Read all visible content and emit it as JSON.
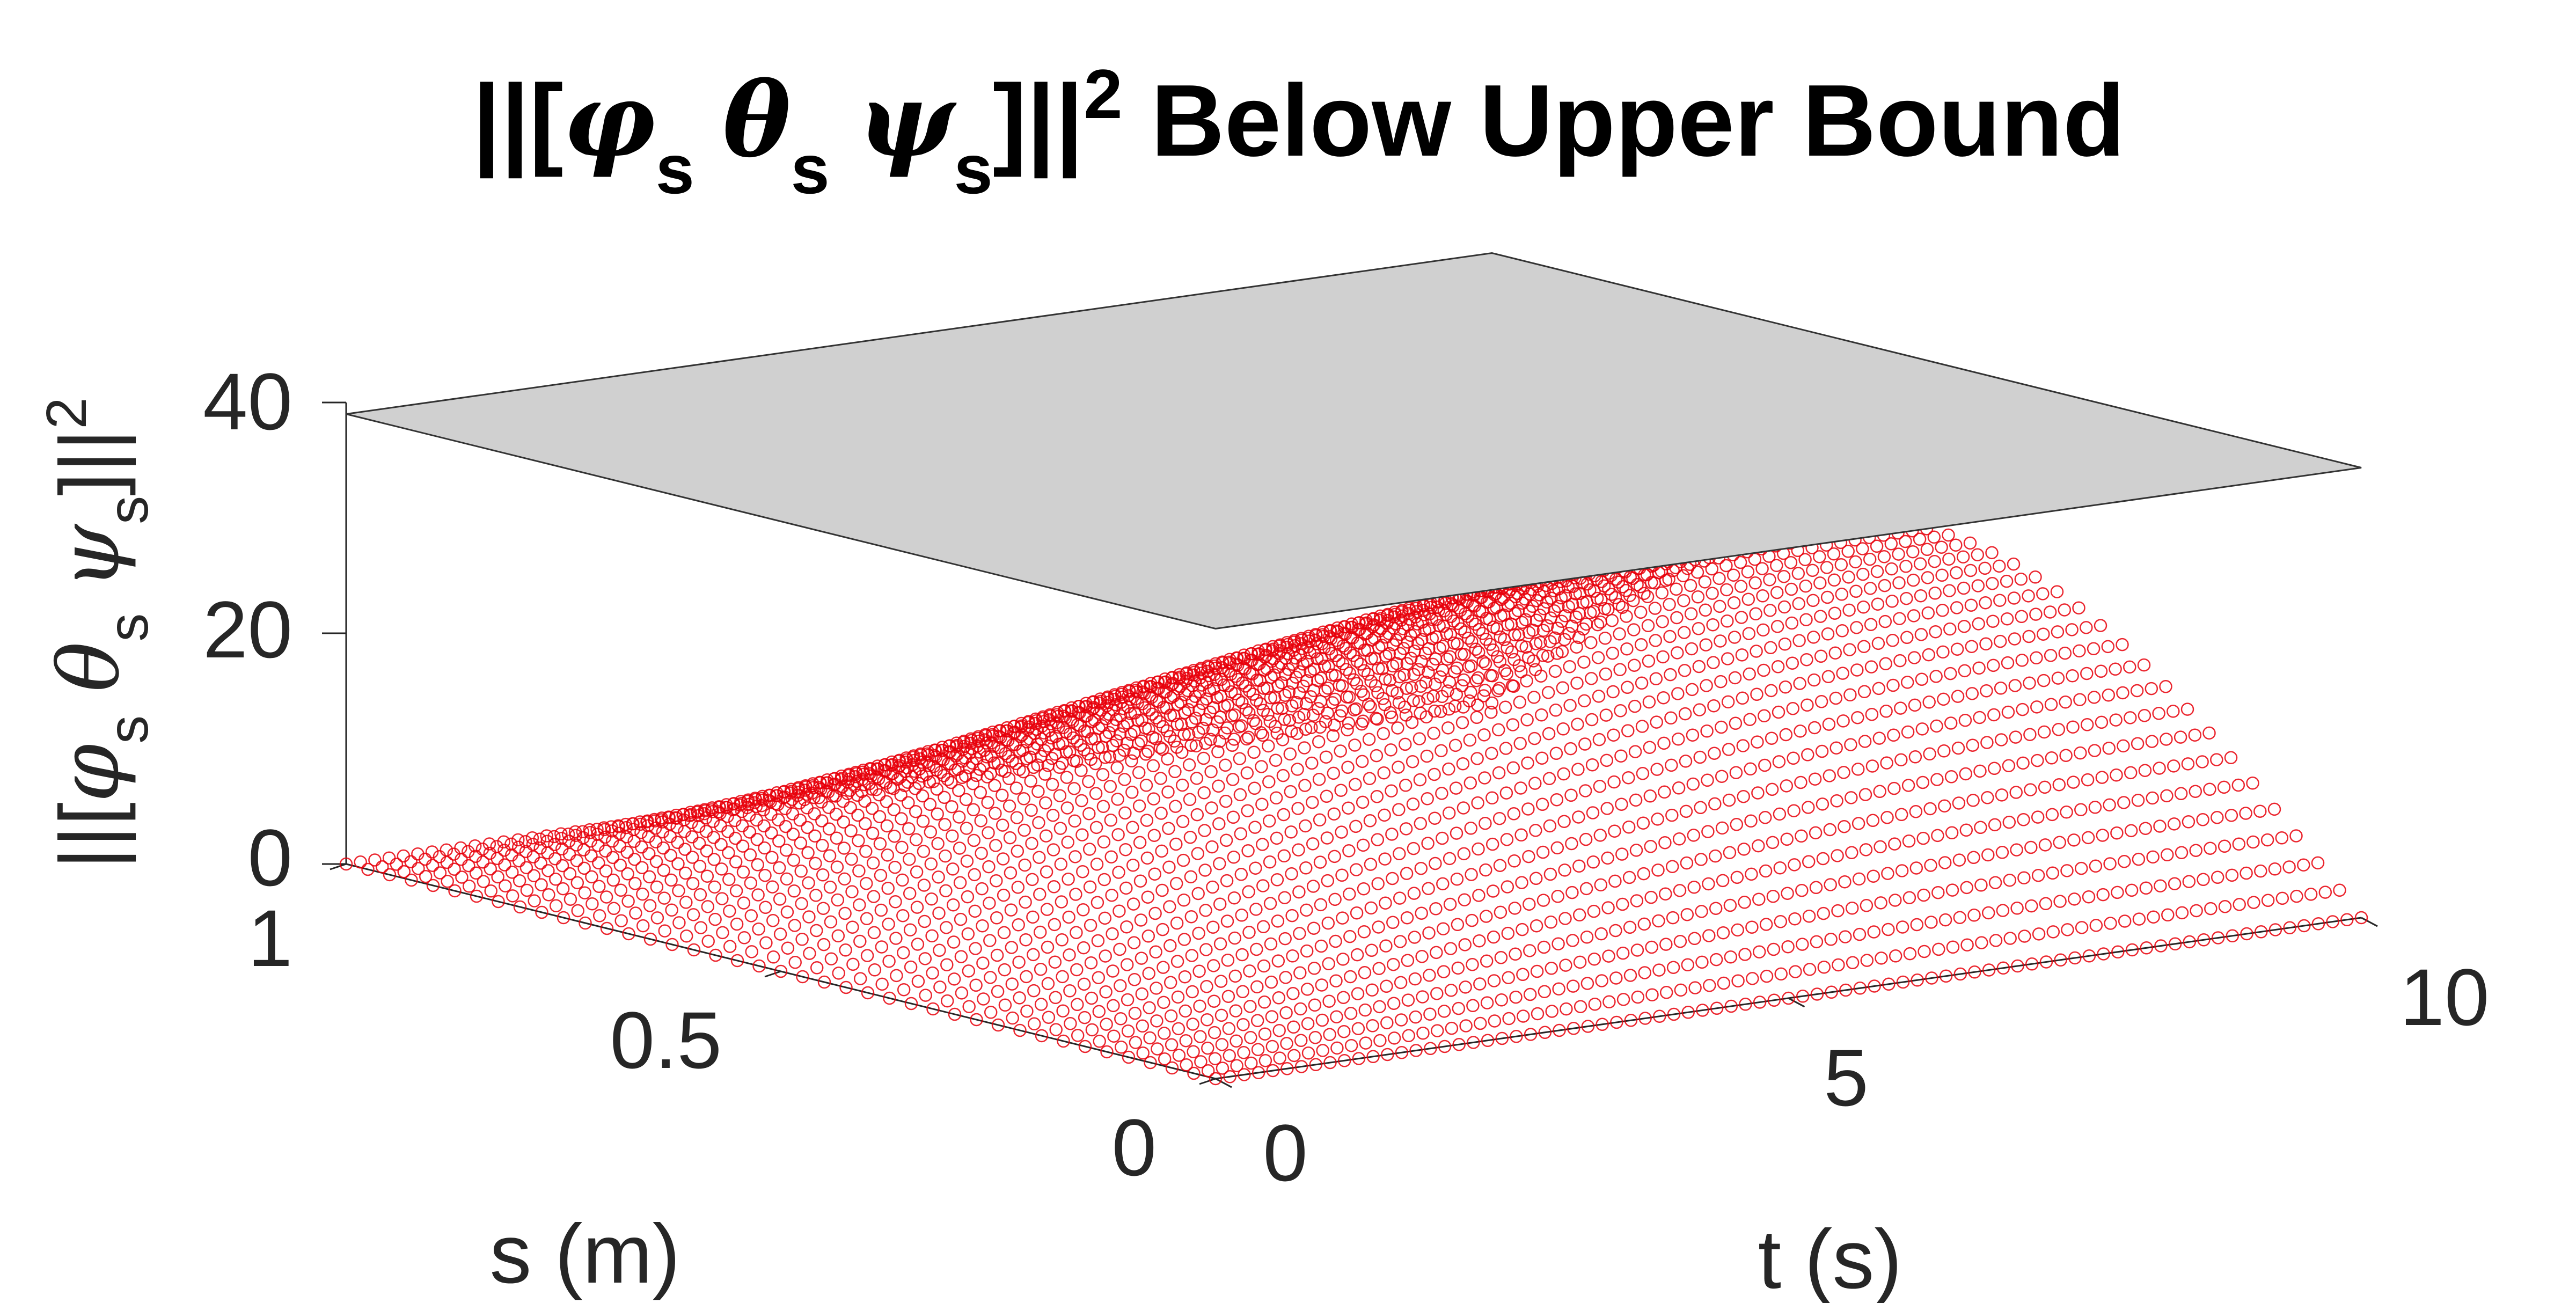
{
  "chart_data": {
    "type": "surface3d",
    "title": {
      "prefix": "||[",
      "greek1": "φ",
      "sub1": "s",
      "greek2": "θ",
      "sub2": "s",
      "greek3": "ψ",
      "sub3": "s",
      "suffix": "]||",
      "exponent": "2",
      "text": " Below Upper Bound"
    },
    "zlabel": {
      "prefix": "||[",
      "greek1": "φ",
      "sub1": "s",
      "greek2": "θ",
      "sub2": "s",
      "greek3": "ψ",
      "sub3": "s",
      "suffix": "]||",
      "exponent": "2"
    },
    "xlabel": "t (s)",
    "ylabel": "s (m)",
    "x_ticks": [
      "0",
      "5",
      "10"
    ],
    "y_ticks": [
      "0",
      "0.5",
      "1"
    ],
    "z_ticks": [
      "0",
      "20",
      "40"
    ],
    "xlim": [
      0,
      10
    ],
    "ylim": [
      0,
      1
    ],
    "zlim": [
      0,
      40
    ],
    "upper_bound": {
      "value": 39,
      "color": "#d0d0d0",
      "edge_color": "#333333"
    },
    "data_surface": {
      "marker": "circle",
      "color": "#e8000b",
      "function": "z = 24.4 * sin(pi*s) * (t/10) * (2 - t/10)",
      "grid_t_count": 81,
      "grid_s_count": 41,
      "z_max": 24.4,
      "peak": {
        "t": 10,
        "s": 0.5,
        "z": 24.4
      }
    }
  }
}
